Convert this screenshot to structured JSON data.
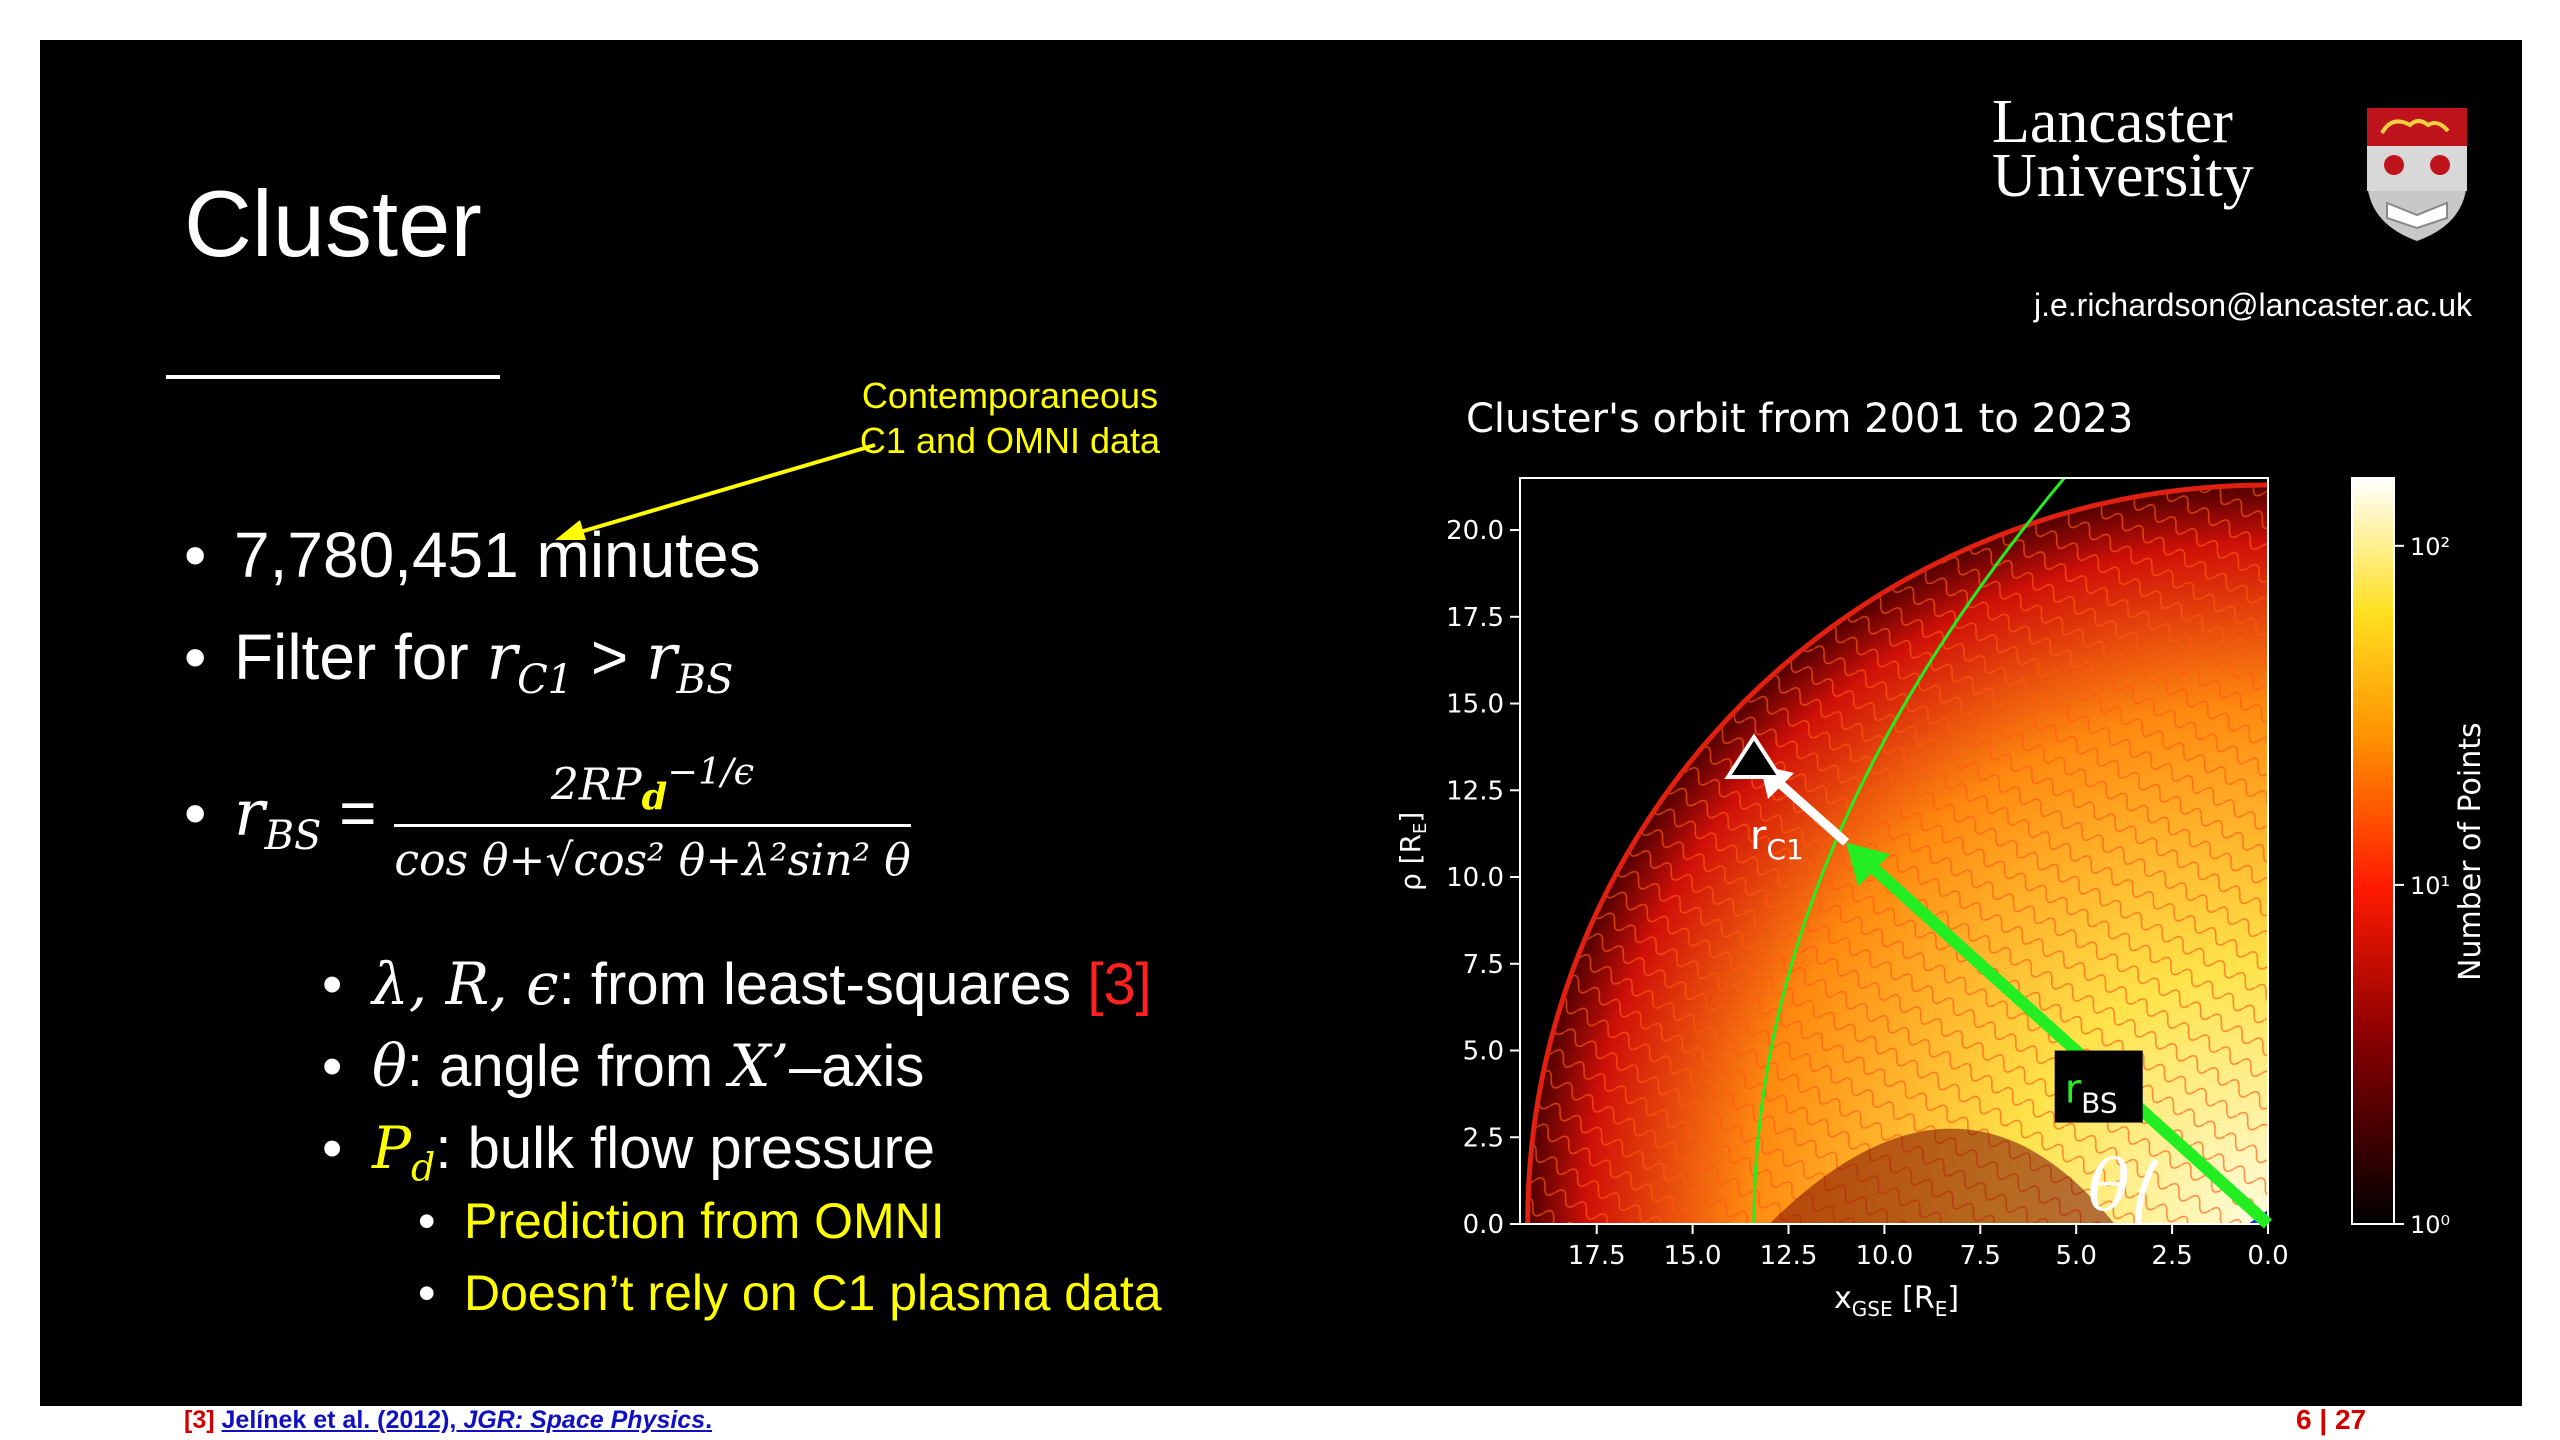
{
  "slide": {
    "title": "Cluster",
    "logo": {
      "line1": "Lancaster",
      "line2": "University"
    },
    "email": "j.e.richardson@lancaster.ac.uk",
    "annotation": {
      "line1": "Contemporaneous",
      "line2": "C1 and OMNI data"
    },
    "bullets": {
      "b1": "7,780,451 minutes",
      "b2_prefix": "Filter for ",
      "b2_math": "r",
      "b2_math_sub1": "C1",
      "b2_gt": " > ",
      "b2_math2": "r",
      "b2_math2_sub": "BS",
      "b3_lhs": "r",
      "b3_lhs_sub": "BS",
      "b3_eq": " = ",
      "b3_num": "2RP",
      "b3_num_sub": "d",
      "b3_num_sup": "−1/ϵ",
      "b3_den": "cos θ+√cos² θ+λ²sin² θ",
      "s1_math": "λ, R, ϵ",
      "s1_text": ": from least-squares ",
      "s1_ref": "[3]",
      "s2_math": "θ",
      "s2_text": ": angle from ",
      "s2_math2": "X’",
      "s2_text2": "–axis",
      "s3_math": "P",
      "s3_math_sub": "d",
      "s3_text": ": bulk flow pressure",
      "ss1": "Prediction from OMNI",
      "ss2": "Doesn’t rely on C1 plasma data"
    },
    "footer": {
      "ref": "[3]",
      "authors": "Jelínek et al. (2012), ",
      "journal": "JGR: Space Physics",
      "period": ".",
      "page": "6 | 27"
    }
  },
  "chart_data": {
    "type": "heatmap",
    "title": "Cluster's orbit from 2001 to 2023",
    "xlabel": "x",
    "xlabel_sub": "GSE",
    "xlabel_unit": " [R",
    "xlabel_unit_sub": "E",
    "xlabel_close": "]",
    "ylabel": "ρ [R",
    "ylabel_sub": "E",
    "ylabel_close": "]",
    "xlim": [
      19.5,
      0.0
    ],
    "ylim": [
      0.0,
      21.5
    ],
    "xticks": [
      "17.5",
      "15.0",
      "12.5",
      "10.0",
      "7.5",
      "5.0",
      "2.5",
      "0.0"
    ],
    "xtick_values": [
      17.5,
      15.0,
      12.5,
      10.0,
      7.5,
      5.0,
      2.5,
      0.0
    ],
    "yticks": [
      "0.0",
      "2.5",
      "5.0",
      "7.5",
      "10.0",
      "12.5",
      "15.0",
      "17.5",
      "20.0"
    ],
    "ytick_values": [
      0.0,
      2.5,
      5.0,
      7.5,
      10.0,
      12.5,
      15.0,
      17.5,
      20.0
    ],
    "colorbar": {
      "label": "Number of Points",
      "ticks": [
        "10⁰",
        "10¹",
        "10²"
      ],
      "scale": "log"
    },
    "annotations": {
      "rc1_label": "r",
      "rc1_sub": "C1",
      "rbs_label": "r",
      "rbs_sub": "BS",
      "theta_label": "θ"
    },
    "spacecraft_point": {
      "x": 13.4,
      "y": 13.4
    },
    "rc1_tip": {
      "x": 11.0,
      "y": 11.0
    },
    "origin": {
      "x": 0.0,
      "y": 0.0
    },
    "colors": {
      "line_green": "#22ee22",
      "triangle": "#ffffff"
    }
  }
}
